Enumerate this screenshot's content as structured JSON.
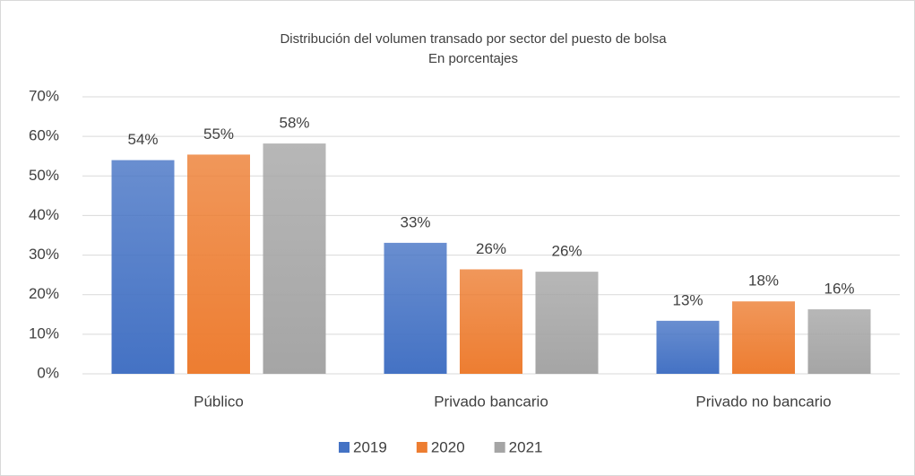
{
  "chart_data": {
    "type": "bar",
    "title": "Distribución del volumen transado por sector del puesto de bolsa",
    "subtitle": "En porcentajes",
    "categories": [
      "Público",
      "Privado bancario",
      "Privado no bancario"
    ],
    "series": [
      {
        "name": "2019",
        "color": "#4472c4",
        "values": [
          54,
          33.1,
          13.4
        ],
        "value_labels": [
          "54%",
          "33%",
          "13%"
        ]
      },
      {
        "name": "2020",
        "color": "#ed7d31",
        "values": [
          55.4,
          26.4,
          18.3
        ],
        "value_labels": [
          "55%",
          "26%",
          "18%"
        ]
      },
      {
        "name": "2021",
        "color": "#a5a5a5",
        "values": [
          58.2,
          25.8,
          16.3
        ],
        "value_labels": [
          "58%",
          "26%",
          "16%"
        ]
      }
    ],
    "ylim": [
      0,
      70
    ],
    "yticks": [
      {
        "value": 0,
        "label": "0%"
      },
      {
        "value": 10,
        "label": "10%"
      },
      {
        "value": 20,
        "label": "20%"
      },
      {
        "value": 30,
        "label": "30%"
      },
      {
        "value": 40,
        "label": "40%"
      },
      {
        "value": 50,
        "label": "50%"
      },
      {
        "value": 60,
        "label": "60%"
      },
      {
        "value": 70,
        "label": "70%"
      }
    ],
    "grid": true,
    "legend": "bottom"
  }
}
